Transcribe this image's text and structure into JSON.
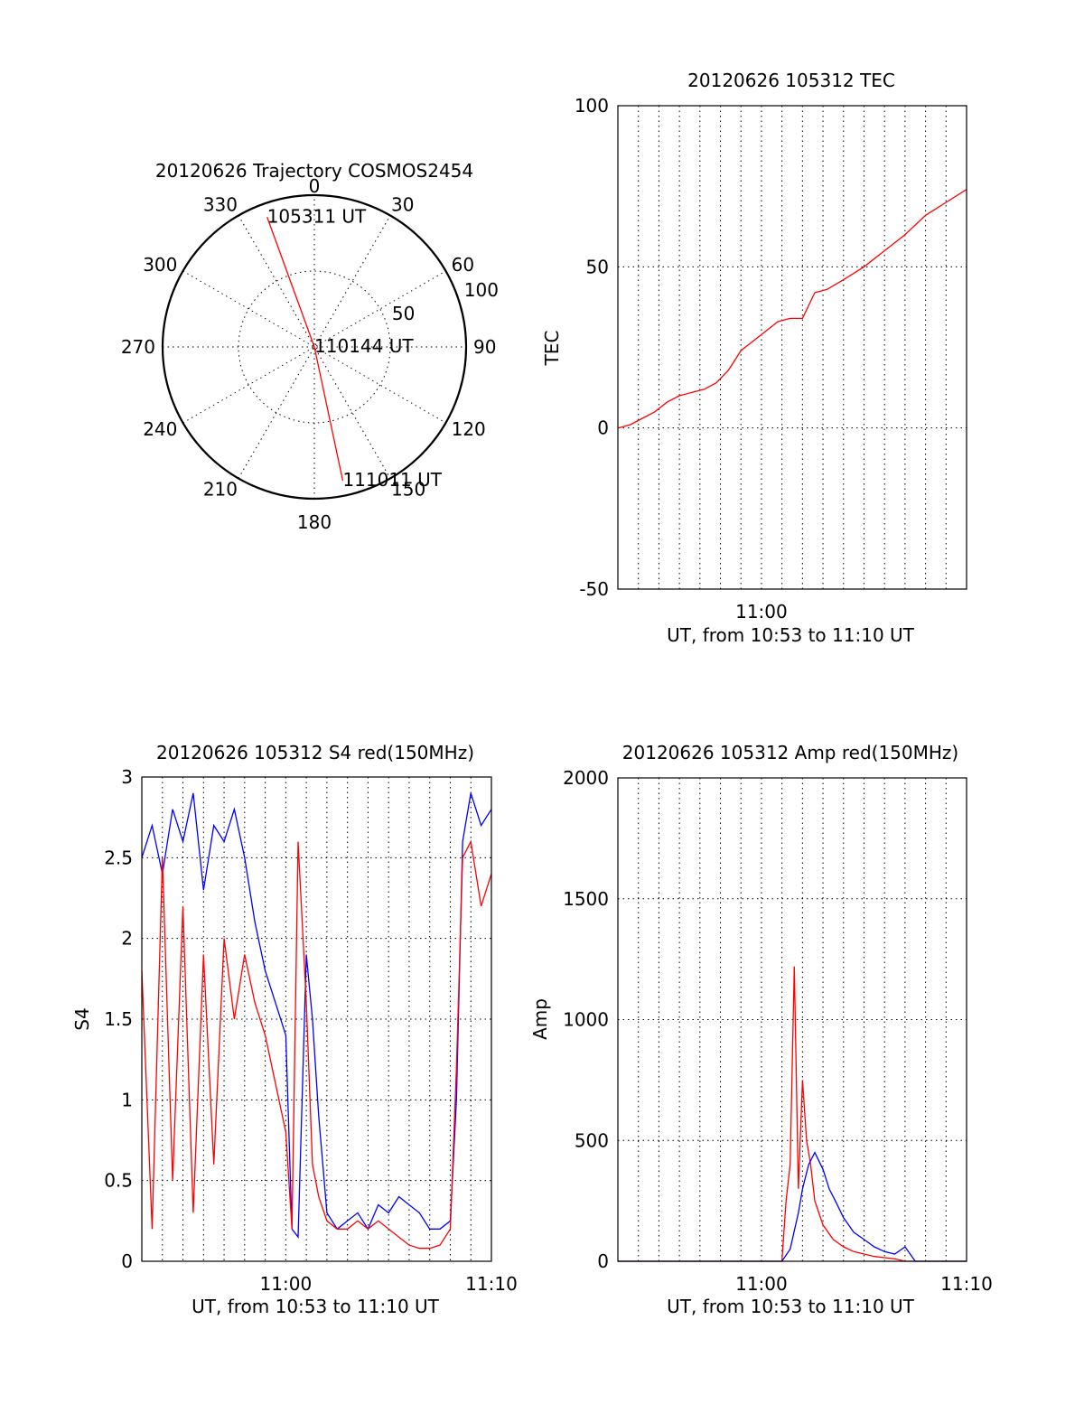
{
  "colors": {
    "red_series": "#ff0000",
    "blue_series": "#0000ff",
    "axes": "#000000"
  },
  "chart_data": [
    {
      "type": "polar",
      "title": "20120626 Trajectory COSMOS2454",
      "angle_labels": [
        "0",
        "30",
        "60",
        "90",
        "120",
        "150",
        "180",
        "210",
        "240",
        "270",
        "300",
        "330"
      ],
      "radial_labels": [
        "50",
        "100"
      ],
      "rlim": [
        0,
        100
      ],
      "grid": true,
      "trajectory": {
        "color": "red",
        "points": [
          {
            "azimuth": 340,
            "radius": 91,
            "label": "105311 UT"
          },
          {
            "azimuth": 0,
            "radius": 0,
            "label": "110144 UT"
          },
          {
            "azimuth": 168,
            "radius": 90,
            "label": "111011 UT"
          }
        ]
      }
    },
    {
      "type": "line",
      "title": "20120626 105312 TEC",
      "xlabel": "UT, from 10:53 to 11:10 UT",
      "ylabel": "TEC",
      "xlim": [
        "10:53",
        "11:10"
      ],
      "ylim": [
        -50,
        100
      ],
      "x_tick_labels": [
        "11:00"
      ],
      "y_tick_labels": [
        "-50",
        "0",
        "50",
        "100"
      ],
      "grid": true,
      "series": [
        {
          "color": "red",
          "x_minutes_after_1053": [
            0,
            0.6,
            1.2,
            1.8,
            2.4,
            3.0,
            3.6,
            4.2,
            4.8,
            5.4,
            6.0,
            6.6,
            7.2,
            7.8,
            8.4,
            9.0,
            9.6,
            10.2,
            11.0,
            12.0,
            13.0,
            14.0,
            15.0,
            16.0,
            17.0
          ],
          "values": [
            0,
            1,
            3,
            5,
            8,
            10,
            11,
            12,
            14,
            18,
            24,
            27,
            30,
            33,
            34,
            34,
            42,
            43,
            46,
            50,
            55,
            60,
            66,
            70,
            74
          ]
        }
      ]
    },
    {
      "type": "line",
      "title": "20120626 105312 S4 red(150MHz)",
      "xlabel": "UT, from 10:53 to 11:10 UT",
      "ylabel": "S4",
      "xlim": [
        "10:53",
        "11:10"
      ],
      "ylim": [
        0,
        3
      ],
      "x_tick_labels": [
        "11:00",
        "11:10"
      ],
      "y_tick_labels": [
        "0",
        "0.5",
        "1",
        "1.5",
        "2",
        "2.5",
        "3"
      ],
      "grid": true,
      "series": [
        {
          "color": "blue",
          "x_minutes_after_1053": [
            0,
            0.5,
            1,
            1.5,
            2,
            2.5,
            3,
            3.5,
            4,
            4.5,
            5,
            5.5,
            6,
            6.5,
            7,
            7.3,
            7.6,
            8,
            8.3,
            8.6,
            9,
            9.5,
            10,
            10.5,
            11,
            11.5,
            12,
            12.5,
            13,
            13.5,
            14,
            14.5,
            15,
            15.3,
            15.6,
            16,
            16.5,
            17
          ],
          "values": [
            2.5,
            2.7,
            2.4,
            2.8,
            2.6,
            2.9,
            2.3,
            2.7,
            2.6,
            2.8,
            2.5,
            2.1,
            1.8,
            1.6,
            1.4,
            0.2,
            0.15,
            1.9,
            1.5,
            0.9,
            0.3,
            0.2,
            0.25,
            0.3,
            0.2,
            0.35,
            0.3,
            0.4,
            0.35,
            0.3,
            0.2,
            0.2,
            0.25,
            1.0,
            2.6,
            2.9,
            2.7,
            2.8
          ]
        },
        {
          "color": "red",
          "x_minutes_after_1053": [
            0,
            0.5,
            1,
            1.5,
            2,
            2.5,
            3,
            3.5,
            4,
            4.5,
            5,
            5.5,
            6,
            6.5,
            7,
            7.3,
            7.6,
            8,
            8.3,
            8.6,
            9,
            9.5,
            10,
            10.5,
            11,
            11.5,
            12,
            12.5,
            13,
            13.5,
            14,
            14.5,
            15,
            15.3,
            15.6,
            16,
            16.5,
            17
          ],
          "values": [
            1.8,
            0.2,
            2.5,
            0.5,
            2.2,
            0.3,
            1.9,
            0.6,
            2.0,
            1.5,
            1.9,
            1.6,
            1.4,
            1.1,
            0.8,
            0.2,
            2.6,
            1.6,
            0.6,
            0.4,
            0.25,
            0.2,
            0.2,
            0.25,
            0.2,
            0.25,
            0.2,
            0.15,
            0.1,
            0.08,
            0.08,
            0.1,
            0.2,
            1.2,
            2.5,
            2.6,
            2.2,
            2.4
          ]
        }
      ]
    },
    {
      "type": "line",
      "title": "20120626 105312 Amp red(150MHz)",
      "xlabel": "UT, from 10:53 to 11:10 UT",
      "ylabel": "Amp",
      "xlim": [
        "10:53",
        "11:10"
      ],
      "ylim": [
        0,
        2000
      ],
      "x_tick_labels": [
        "11:00",
        "11:10"
      ],
      "y_tick_labels": [
        "0",
        "500",
        "1000",
        "1500",
        "2000"
      ],
      "grid": true,
      "series": [
        {
          "color": "red",
          "x_minutes_after_1053": [
            0,
            8.0,
            8.2,
            8.4,
            8.6,
            8.8,
            9.0,
            9.2,
            9.4,
            9.6,
            9.8,
            10.0,
            10.5,
            11.0,
            11.5,
            12.0,
            12.5,
            13.0,
            13.5,
            14.0,
            17
          ],
          "values": [
            0,
            0,
            250,
            400,
            1220,
            300,
            750,
            500,
            400,
            250,
            200,
            150,
            90,
            60,
            40,
            30,
            20,
            15,
            10,
            0,
            0
          ]
        },
        {
          "color": "blue",
          "x_minutes_after_1053": [
            0,
            8.0,
            8.4,
            8.8,
            9.0,
            9.3,
            9.6,
            10.0,
            10.3,
            10.6,
            11.0,
            11.5,
            12.0,
            12.5,
            13.0,
            13.5,
            14.0,
            14.5,
            17
          ],
          "values": [
            0,
            0,
            50,
            200,
            300,
            400,
            450,
            380,
            300,
            250,
            180,
            120,
            90,
            60,
            40,
            30,
            60,
            0,
            0
          ]
        }
      ]
    }
  ]
}
